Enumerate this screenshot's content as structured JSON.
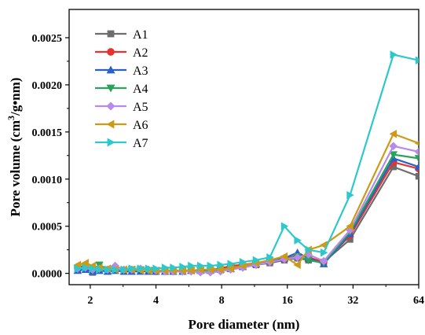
{
  "chart_data": {
    "type": "line",
    "xlabel": "Pore diameter (nm)",
    "ylabel_parts": {
      "prefix": "Pore volume (cm",
      "sup": "3",
      "suffix": "/g•nm)"
    },
    "x_scale": "log2",
    "xlim": [
      1.6,
      64
    ],
    "ylim": [
      -0.00012,
      0.0028
    ],
    "x_ticks": [
      2,
      4,
      8,
      16,
      32,
      64
    ],
    "x_tick_labels": [
      "2",
      "4",
      "8",
      "16",
      "32",
      "64"
    ],
    "y_ticks": [
      0,
      0.0005,
      0.001,
      0.0015,
      0.002,
      0.0025
    ],
    "y_tick_labels": [
      "0.0000",
      "0.0005",
      "0.0010",
      "0.0015",
      "0.0020",
      "0.0025"
    ],
    "legend_position": "top-left",
    "x": [
      1.75,
      1.9,
      2.05,
      2.2,
      2.4,
      2.6,
      2.85,
      3.1,
      3.4,
      3.7,
      4.0,
      4.4,
      4.8,
      5.3,
      5.8,
      6.4,
      7.1,
      7.9,
      8.8,
      10.0,
      11.5,
      13.3,
      15.5,
      17.8,
      20.0,
      23.5,
      31.0,
      49.0,
      64.0
    ],
    "series": [
      {
        "name": "A1",
        "color": "#6d6d6d",
        "marker": "square",
        "values": [
          4e-05,
          5e-05,
          1e-05,
          3e-05,
          2e-05,
          3e-05,
          2e-05,
          2e-05,
          3e-05,
          2e-05,
          2e-05,
          2e-05,
          2e-05,
          2e-05,
          3e-05,
          3e-05,
          3e-05,
          4e-05,
          5e-05,
          7e-05,
          9e-05,
          0.00011,
          0.00014,
          0.00016,
          0.00014,
          0.00012,
          0.00036,
          0.00113,
          0.00103
        ]
      },
      {
        "name": "A2",
        "color": "#e8322e",
        "marker": "circle",
        "values": [
          6e-05,
          8e-05,
          4e-05,
          5e-05,
          3e-05,
          4e-05,
          3e-05,
          3e-05,
          3e-05,
          3e-05,
          2e-05,
          3e-05,
          2e-05,
          3e-05,
          3e-05,
          3e-05,
          4e-05,
          5e-05,
          8e-05,
          9e-05,
          0.00011,
          0.00012,
          0.00015,
          0.00019,
          0.00017,
          0.00012,
          0.0004,
          0.00118,
          0.00111
        ]
      },
      {
        "name": "A3",
        "color": "#2a5fcc",
        "marker": "triangle-up",
        "values": [
          3e-05,
          4e-05,
          2e-05,
          3e-05,
          2e-05,
          3e-05,
          2e-05,
          2e-05,
          2e-05,
          2e-05,
          2e-05,
          2e-05,
          2e-05,
          2e-05,
          3e-05,
          3e-05,
          3e-05,
          4e-05,
          5e-05,
          7e-05,
          0.0001,
          0.00013,
          0.00016,
          0.00022,
          0.00016,
          0.0001,
          0.00042,
          0.00122,
          0.00113
        ]
      },
      {
        "name": "A4",
        "color": "#27a35a",
        "marker": "triangle-down",
        "values": [
          5e-05,
          7e-05,
          3e-05,
          9e-05,
          4e-05,
          5e-05,
          3e-05,
          4e-05,
          4e-05,
          3e-05,
          3e-05,
          2e-05,
          3e-05,
          3e-05,
          3e-05,
          3e-05,
          3e-05,
          4e-05,
          6e-05,
          7e-05,
          9e-05,
          0.00012,
          0.00015,
          0.00018,
          0.00014,
          0.00011,
          0.00044,
          0.00126,
          0.00122
        ]
      },
      {
        "name": "A5",
        "color": "#b78bea",
        "marker": "diamond",
        "values": [
          5e-05,
          6e-05,
          4e-05,
          5e-05,
          4e-05,
          8e-05,
          4e-05,
          4e-05,
          5e-05,
          4e-05,
          3e-05,
          2e-05,
          2e-05,
          2e-05,
          2e-05,
          1e-05,
          1e-05,
          2e-05,
          4e-05,
          6e-05,
          9e-05,
          0.00012,
          0.00015,
          0.00017,
          0.0002,
          0.00013,
          0.00046,
          0.00135,
          0.00129
        ]
      },
      {
        "name": "A6",
        "color": "#cc9a16",
        "marker": "triangle-left",
        "values": [
          9e-05,
          0.00011,
          8e-05,
          6e-05,
          5e-05,
          4e-05,
          4e-05,
          4e-05,
          3e-05,
          3e-05,
          3e-05,
          3e-05,
          3e-05,
          3e-05,
          3e-05,
          4e-05,
          4e-05,
          4e-05,
          5e-05,
          8e-05,
          0.00011,
          0.00014,
          0.00018,
          9e-05,
          0.00025,
          0.0003,
          0.0005,
          0.00148,
          0.00138
        ]
      },
      {
        "name": "A7",
        "color": "#2ec7cb",
        "marker": "triangle-right",
        "values": [
          5e-05,
          6e-05,
          5e-05,
          4e-05,
          4e-05,
          4e-05,
          4e-05,
          5e-05,
          5e-05,
          5e-05,
          5e-05,
          6e-05,
          6e-05,
          7e-05,
          8e-05,
          8e-05,
          8e-05,
          9e-05,
          0.0001,
          0.00012,
          0.00014,
          0.00017,
          0.0005,
          0.00035,
          0.00025,
          0.00022,
          0.00083,
          0.00232,
          0.00226
        ]
      }
    ]
  }
}
